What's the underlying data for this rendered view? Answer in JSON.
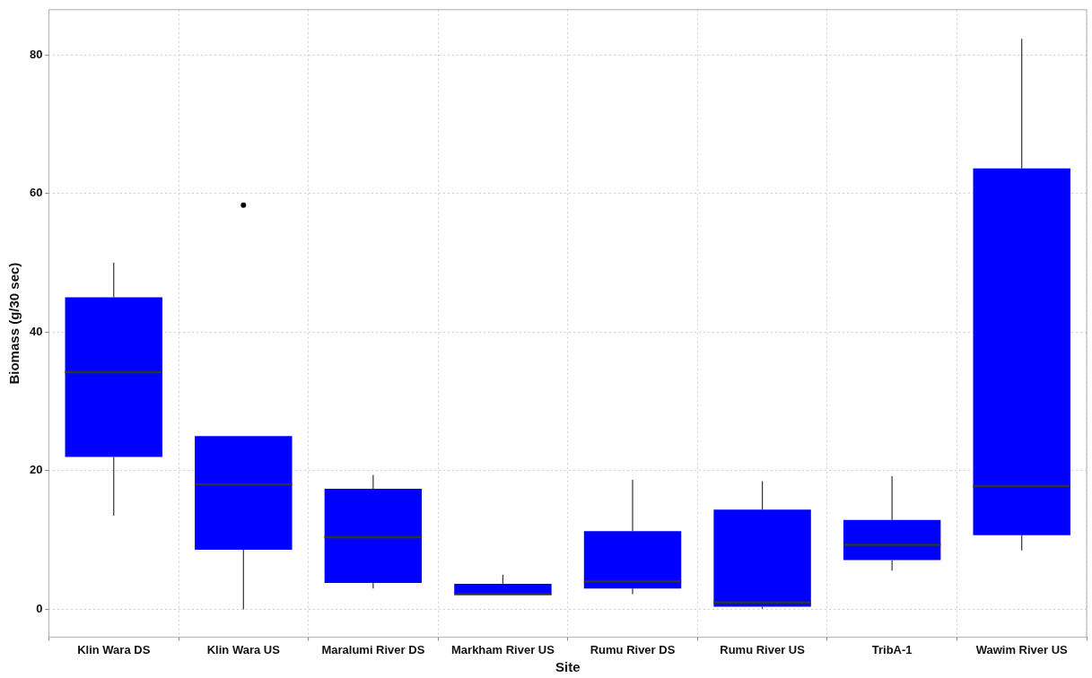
{
  "chart_data": {
    "type": "box",
    "xlabel": "Site",
    "ylabel": "Biomass (g/30 sec)",
    "categories": [
      "Klin Wara DS",
      "Klin Wara US",
      "Maralumi River DS",
      "Markham River US",
      "Rumu River DS",
      "Rumu River US",
      "TribA-1",
      "Wawim River US"
    ],
    "color": "#0000ff",
    "boxes": [
      {
        "low": 13.5,
        "q1": 22,
        "median": 34.2,
        "q3": 45,
        "high": 50
      },
      {
        "low": 0,
        "q1": 8.6,
        "median": 18,
        "q3": 25,
        "high": 25,
        "outliers": [
          58.3
        ]
      },
      {
        "low": 3,
        "q1": 3.8,
        "median": 10.4,
        "q3": 17.4,
        "high": 19.4
      },
      {
        "low": 2.2,
        "q1": 2.2,
        "median": 2.2,
        "q3": 3.7,
        "high": 5
      },
      {
        "low": 2.2,
        "q1": 3,
        "median": 4,
        "q3": 11.3,
        "high": 18.7
      },
      {
        "low": 0.1,
        "q1": 0.4,
        "median": 1,
        "q3": 14.4,
        "high": 18.5
      },
      {
        "low": 5.6,
        "q1": 7.1,
        "median": 9.3,
        "q3": 12.9,
        "high": 19.2
      },
      {
        "low": 8.5,
        "q1": 10.7,
        "median": 17.8,
        "q3": 63.6,
        "high": 82.3
      }
    ],
    "ylim": [
      -4,
      86.5
    ],
    "yticks": [
      0,
      20,
      40,
      60,
      80
    ],
    "grid": true
  }
}
